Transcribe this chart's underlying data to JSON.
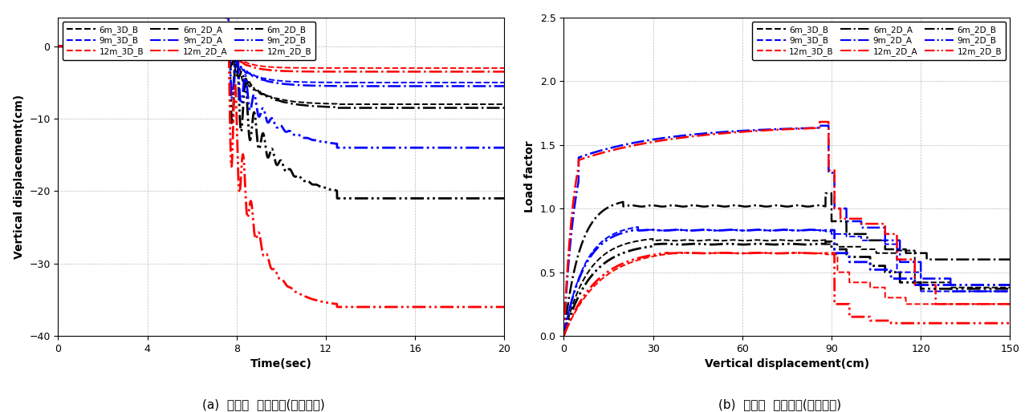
{
  "fig_width": 12.87,
  "fig_height": 5.14,
  "caption_a": "(a)  비선형  동적해석(내부기둥)",
  "caption_b": "(b)  비선형  정적해석(내부기둥)",
  "plot_a": {
    "xlabel": "Time(sec)",
    "ylabel": "Vertical displacement(cm)",
    "xlim": [
      0,
      20
    ],
    "ylim": [
      -40,
      4
    ],
    "xticks": [
      0,
      4,
      8,
      12,
      16,
      20
    ],
    "yticks": [
      -40,
      -30,
      -20,
      -10,
      0
    ]
  },
  "plot_b": {
    "xlabel": "Vertical displacement(cm)",
    "ylabel": "Load factor",
    "xlim": [
      0,
      150
    ],
    "ylim": [
      0,
      2.5
    ],
    "xticks": [
      0,
      30,
      60,
      90,
      120,
      150
    ],
    "yticks": [
      0,
      0.5,
      1.0,
      1.5,
      2.0,
      2.5
    ]
  },
  "curves": {
    "6m_3D_B": {
      "color": "black",
      "ls": "--",
      "lw": 1.4
    },
    "9m_3D_B": {
      "color": "blue",
      "ls": "--",
      "lw": 1.4
    },
    "12m_3D_B": {
      "color": "red",
      "ls": "--",
      "lw": 1.4
    },
    "6m_2D_A": {
      "color": "black",
      "ls": "-.",
      "lw": 1.8
    },
    "9m_2D_A": {
      "color": "blue",
      "ls": "-.",
      "lw": 1.8
    },
    "12m_2D_A": {
      "color": "red",
      "ls": "-.",
      "lw": 1.8
    },
    "6m_2D_B": {
      "color": "black",
      "ls": "ddd",
      "lw": 2.0
    },
    "9m_2D_B": {
      "color": "blue",
      "ls": "ddd",
      "lw": 2.0
    },
    "12m_2D_B": {
      "color": "red",
      "ls": "ddd",
      "lw": 2.0
    }
  }
}
